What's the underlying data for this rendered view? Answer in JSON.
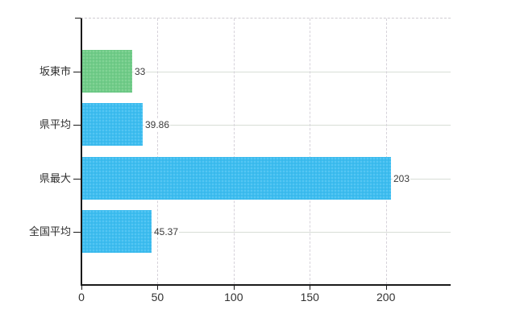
{
  "chart_data": {
    "type": "bar",
    "orientation": "horizontal",
    "title": "",
    "categories": [
      "坂東市",
      "県平均",
      "県最大",
      "全国平均"
    ],
    "values": [
      33,
      39.86,
      203,
      45.37
    ],
    "value_labels": [
      "33",
      "39.86",
      "203",
      "45.37"
    ],
    "bar_colors": [
      "#70cc87",
      "#3dbdf0",
      "#3dbdf0",
      "#3dbdf0"
    ],
    "x_tick_labels": [
      "0",
      "50",
      "100",
      "150",
      "200"
    ],
    "x_tick_values": [
      0,
      50,
      100,
      150,
      200
    ],
    "xlim": [
      0,
      242
    ],
    "legend": "none",
    "grid": {
      "vertical_style": "dashed",
      "horizontal_style": "solid",
      "vertical_color": "#d6d2da",
      "horizontal_color": "#d8ded6"
    },
    "colors": {
      "axis": "#1a1a1a",
      "value_label_text": "#3a3a3a",
      "category_label_text": "#2e2e2e",
      "tick_label_text": "#323232",
      "background": "#ffffff"
    }
  }
}
